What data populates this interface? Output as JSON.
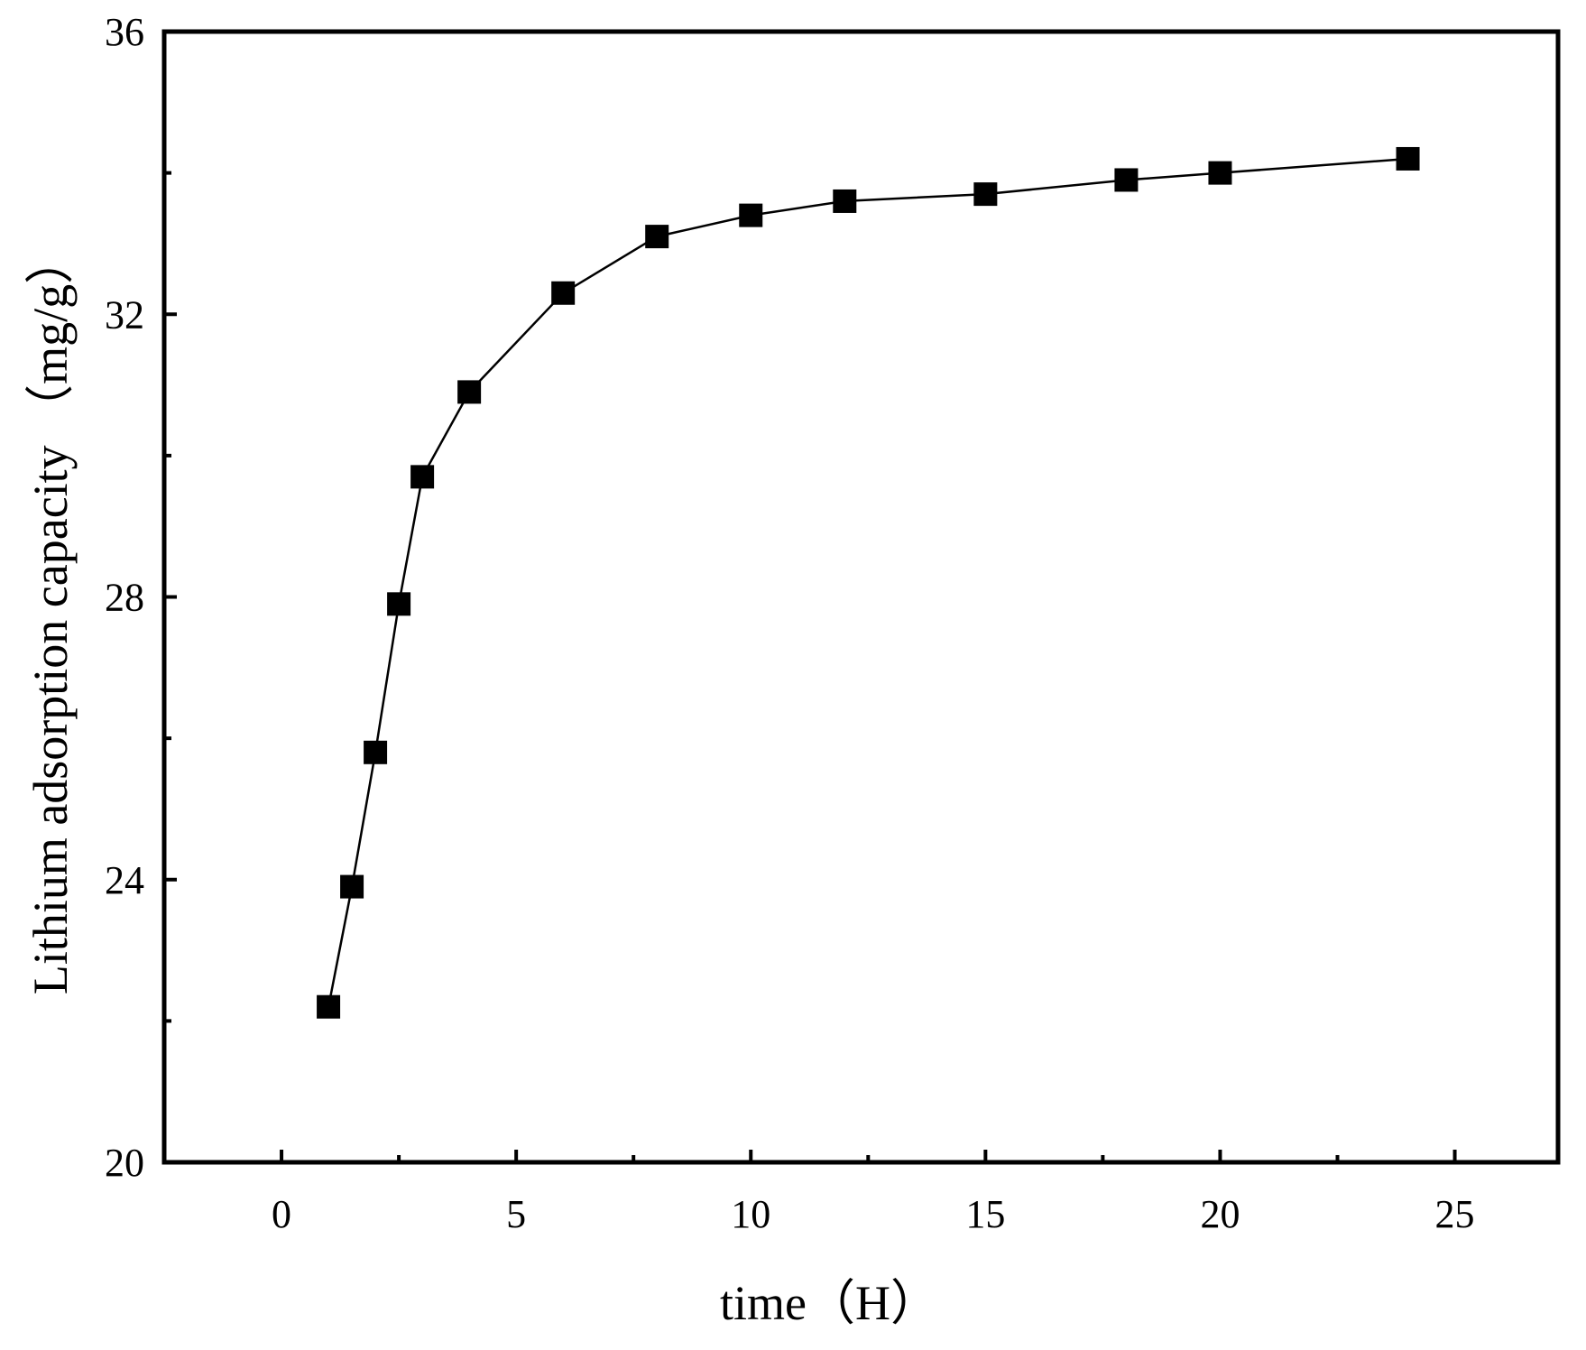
{
  "chart_data": {
    "type": "line",
    "title": "",
    "xlabel": "time（H）",
    "ylabel": "Lithium adsorption capacity （mg/g）",
    "xlim": [
      -2.5,
      27.2
    ],
    "ylim": [
      20,
      36
    ],
    "x_ticks": [
      0,
      5,
      10,
      15,
      20,
      25
    ],
    "x_minor_ticks": [
      2.5,
      7.5,
      12.5,
      17.5,
      22.5
    ],
    "y_ticks": [
      20,
      24,
      28,
      32,
      36
    ],
    "y_minor_ticks": [
      22,
      26,
      30,
      34
    ],
    "grid": false,
    "legend": "none",
    "marker": "square",
    "colors": {
      "line": "#000000",
      "marker": "#000000",
      "axes": "#000000"
    },
    "series": [
      {
        "x": [
          1,
          1.5,
          2,
          2.5,
          3,
          4,
          6,
          8,
          10,
          12,
          15,
          18,
          20,
          24
        ],
        "values": [
          22.2,
          23.9,
          25.8,
          27.9,
          29.7,
          30.9,
          32.3,
          33.1,
          33.4,
          33.6,
          33.7,
          33.9,
          34.0,
          34.2
        ]
      }
    ]
  }
}
